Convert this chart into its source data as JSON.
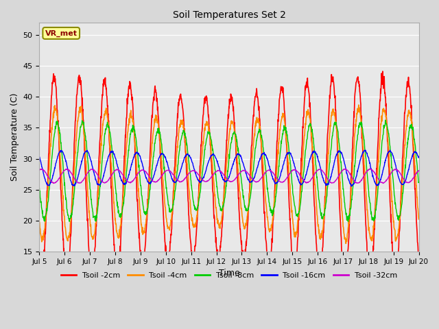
{
  "title": "Soil Temperatures Set 2",
  "xlabel": "Time",
  "ylabel": "Soil Temperature (C)",
  "ylim": [
    15,
    52
  ],
  "yticks": [
    15,
    20,
    25,
    30,
    35,
    40,
    45,
    50
  ],
  "x_labels": [
    "Jul 5",
    "Jul 6",
    "Jul 7",
    "Jul 8",
    "Jul 9",
    "Jul 10",
    "Jul 11",
    "Jul 12",
    "Jul 13",
    "Jul 14",
    "Jul 15",
    "Jul 16",
    "Jul 17",
    "Jul 18",
    "Jul 19",
    "Jul 20"
  ],
  "legend_labels": [
    "Tsoil -2cm",
    "Tsoil -4cm",
    "Tsoil -8cm",
    "Tsoil -16cm",
    "Tsoil -32cm"
  ],
  "line_colors": [
    "#ff0000",
    "#ff8c00",
    "#00cc00",
    "#0000ff",
    "#cc00cc"
  ],
  "background_color": "#d8d8d8",
  "plot_bg_color": "#e8e8e8",
  "annotation_text": "VR_met",
  "annotation_bg": "#ffff99",
  "annotation_edge": "#8B8B00",
  "num_days": 15,
  "points_per_day": 96,
  "base_temp": 27.0,
  "amplitudes": [
    14.5,
    9.5,
    7.0,
    2.5,
    1.0
  ],
  "phase_offsets": [
    0.0,
    0.04,
    0.12,
    0.28,
    0.5
  ],
  "base_temps": [
    27.0,
    27.5,
    28.0,
    28.5,
    27.2
  ]
}
